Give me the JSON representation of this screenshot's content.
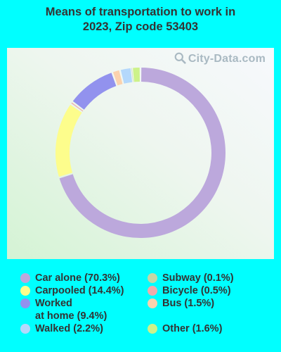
{
  "title_line1": "Means of transportation to work in",
  "title_line2": "2023, Zip code 53403",
  "watermark": "City-Data.com",
  "chart_data": {
    "type": "pie",
    "title": "Means of transportation to work in 2023, Zip code 53403",
    "donut": true,
    "slices": [
      {
        "label": "Car alone (70.3%)",
        "value": 70.3,
        "color": "#bca8dc"
      },
      {
        "label": "Carpooled (14.4%)",
        "value": 14.4,
        "color": "#fdfd8c"
      },
      {
        "label": "Bicycle (0.5%)",
        "value": 0.5,
        "color": "#f0abab"
      },
      {
        "label": "Worked\nat home (9.4%)",
        "value": 9.4,
        "color": "#9292ee"
      },
      {
        "label": "Bus (1.5%)",
        "value": 1.5,
        "color": "#fbd2ae"
      },
      {
        "label": "Walked (2.2%)",
        "value": 2.2,
        "color": "#b4d8fc"
      },
      {
        "label": "Subway (0.1%)",
        "value": 0.1,
        "color": "#c5d6a6"
      },
      {
        "label": "Other (1.6%)",
        "value": 1.6,
        "color": "#cdf28a"
      }
    ],
    "legend_left": [
      0,
      1,
      3,
      5
    ],
    "legend_right": [
      6,
      2,
      4,
      7
    ]
  }
}
